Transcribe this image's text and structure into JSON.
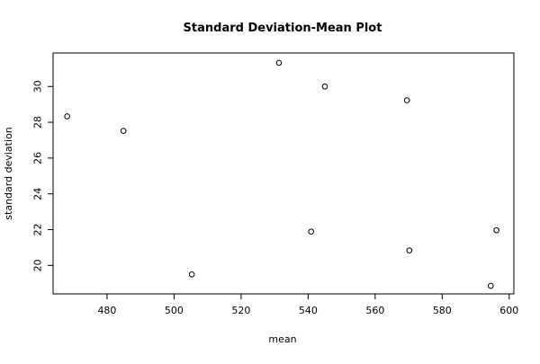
{
  "chart_data": {
    "type": "scatter",
    "title": "Standard Deviation-Mean Plot",
    "xlabel": "mean",
    "ylabel": "standard deviation",
    "xlim": [
      463.9,
      601.4
    ],
    "ylim": [
      18.41,
      31.87
    ],
    "x_ticks": [
      480,
      500,
      520,
      540,
      560,
      580,
      600
    ],
    "y_ticks": [
      20,
      22,
      24,
      26,
      28,
      30
    ],
    "grid": false,
    "legend": "none",
    "marker": "open-circle",
    "colors": {
      "points": "#000000",
      "axis": "#000000",
      "background": "#ffffff"
    },
    "points": [
      {
        "x": 468.1,
        "y": 28.33
      },
      {
        "x": 484.9,
        "y": 27.52
      },
      {
        "x": 505.3,
        "y": 19.5
      },
      {
        "x": 531.3,
        "y": 31.32
      },
      {
        "x": 540.9,
        "y": 21.89
      },
      {
        "x": 545.0,
        "y": 30.0
      },
      {
        "x": 569.5,
        "y": 29.23
      },
      {
        "x": 570.2,
        "y": 20.84
      },
      {
        "x": 594.5,
        "y": 18.86
      },
      {
        "x": 596.2,
        "y": 21.97
      }
    ]
  }
}
